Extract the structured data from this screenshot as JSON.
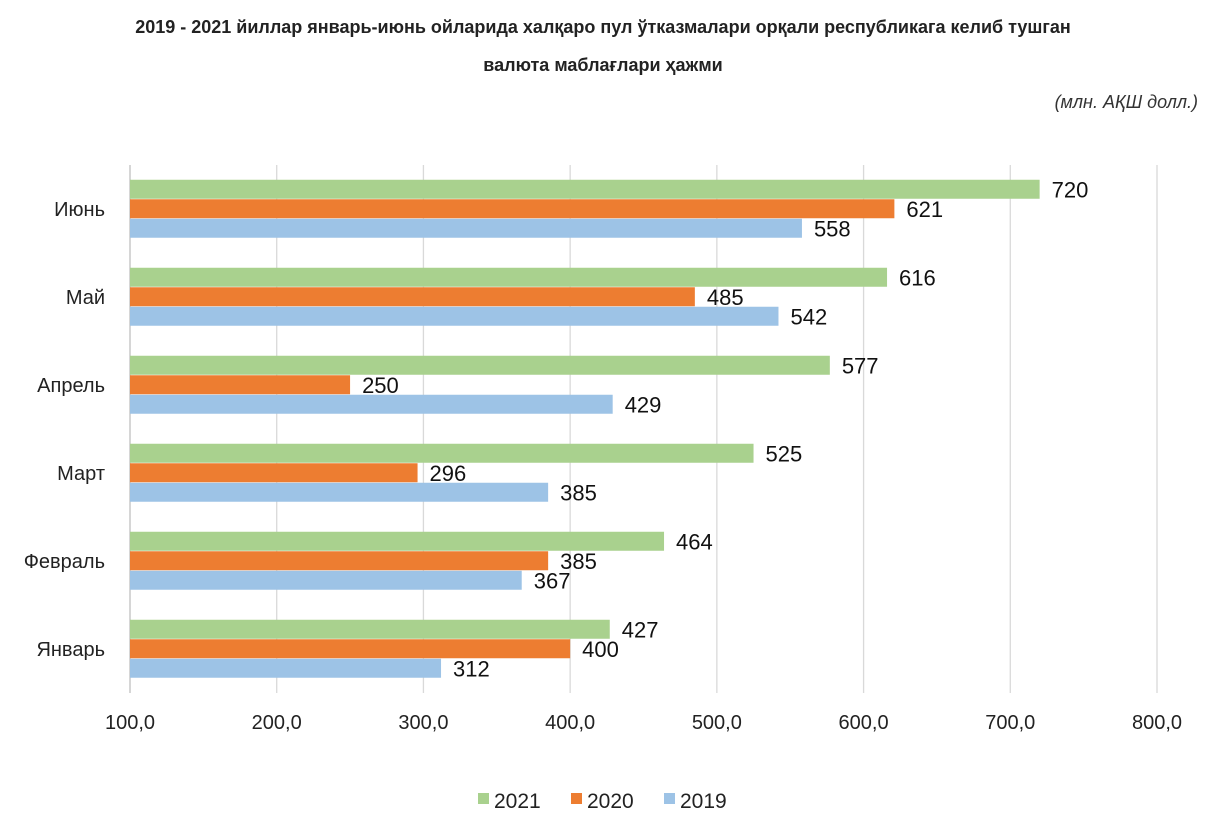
{
  "chart_data": {
    "type": "bar",
    "orientation": "horizontal",
    "title_line1": "2019 - 2021 йиллар январь-июнь ойларида халқаро пул ўтказмалари орқали республикага келиб тушган",
    "title_line2": "валюта маблағлари ҳажми",
    "units": "(млн. АҚШ долл.)",
    "categories": [
      "Январь",
      "Февраль",
      "Март",
      "Апрель",
      "Май",
      "Июнь"
    ],
    "series": [
      {
        "name": "2021",
        "color": "#A9D18E",
        "values": [
          427,
          464,
          525,
          577,
          616,
          720
        ]
      },
      {
        "name": "2020",
        "color": "#ED7D31",
        "values": [
          400,
          385,
          296,
          250,
          485,
          621
        ]
      },
      {
        "name": "2019",
        "color": "#9DC3E6",
        "values": [
          312,
          367,
          385,
          429,
          542,
          558
        ]
      }
    ],
    "xlim": [
      100,
      800
    ],
    "xticks": [
      100,
      200,
      300,
      400,
      500,
      600,
      700,
      800
    ],
    "xtick_labels": [
      "100,0",
      "200,0",
      "300,0",
      "400,0",
      "500,0",
      "600,0",
      "700,0",
      "800,0"
    ],
    "grid": true,
    "legend": "bottom"
  }
}
